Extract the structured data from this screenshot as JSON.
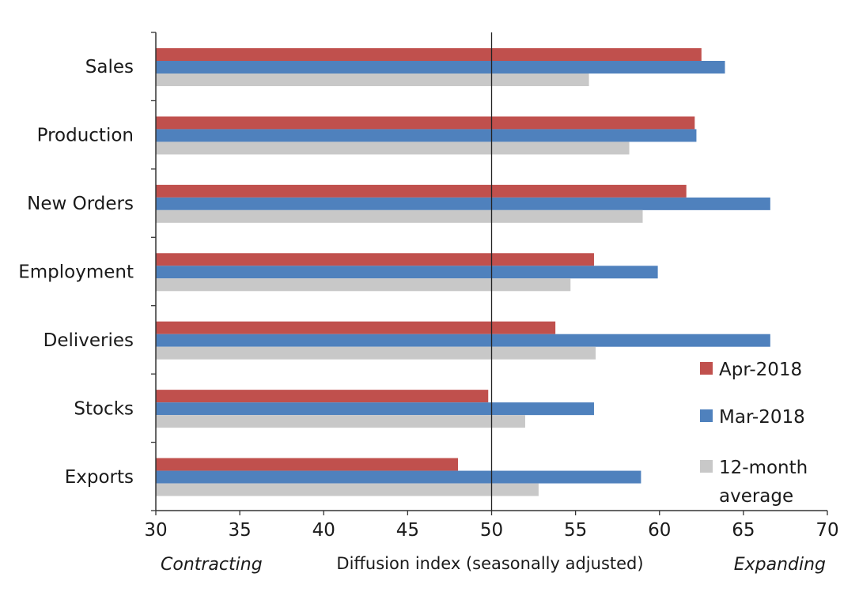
{
  "chart_data": {
    "type": "bar",
    "orientation": "horizontal",
    "categories": [
      "Sales",
      "Production",
      "New Orders",
      "Employment",
      "Deliveries",
      "Stocks",
      "Exports"
    ],
    "series": [
      {
        "name": "Apr-2018",
        "color": "#c0504d",
        "values": [
          62.5,
          62.1,
          61.6,
          56.1,
          53.8,
          49.8,
          48.0
        ]
      },
      {
        "name": "Mar-2018",
        "color": "#4f81bd",
        "values": [
          63.9,
          62.2,
          66.6,
          59.9,
          66.6,
          56.1,
          58.9
        ]
      },
      {
        "name": "12-month average",
        "color": "#c8c8c8",
        "values": [
          55.8,
          58.2,
          59.0,
          54.7,
          56.2,
          52.0,
          52.8
        ]
      }
    ],
    "legend_lines": [
      [
        "Apr-2018"
      ],
      [
        "Mar-2018"
      ],
      [
        "12-month",
        "average"
      ]
    ],
    "xlim": [
      30,
      70
    ],
    "xticks": [
      30,
      35,
      40,
      45,
      50,
      55,
      60,
      65,
      70
    ],
    "reference_line": 50,
    "xlabel": "Diffusion index (seasonally adjusted)",
    "left_note": "Contracting",
    "right_note": "Expanding",
    "legend_position": "lower-right",
    "grid": false
  }
}
